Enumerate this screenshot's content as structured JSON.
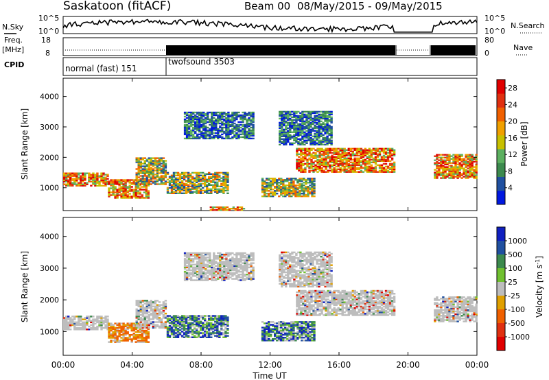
{
  "header": {
    "station": "Saskatoon (fitACF)",
    "beam": "Beam 00",
    "date_range": "08/May/2015 - 09/May/2015"
  },
  "top_panels": {
    "nsky_label": "N.Sky",
    "nsky_ticks": [
      "10^5",
      "10^0"
    ],
    "nsearch_label": "N.Search",
    "nsearch_ticks": [
      "10^5",
      "10^0"
    ],
    "freq_label_1": "Freq.",
    "freq_label_2": "[MHz]",
    "freq_ticks": [
      "18",
      "8"
    ],
    "nave_label": "Nave",
    "nave_ticks": [
      "80",
      "0"
    ],
    "cpid_label": "CPID",
    "cpid_modes": [
      {
        "label": "normal (fast) 151"
      },
      {
        "label": "twofsound 3503"
      }
    ]
  },
  "colors": {
    "power": [
      "#0018e0",
      "#2050a0",
      "#3c8a4e",
      "#5cb060",
      "#c8c000",
      "#f0a000",
      "#f06000",
      "#e03010",
      "#e00000"
    ],
    "velocity_pos": [
      "#1020c0",
      "#2050a0",
      "#3c8a4e",
      "#70c030"
    ],
    "velocity_mid": "#bdbdbd",
    "velocity_neg": [
      "#e0a000",
      "#f06000",
      "#e03010",
      "#e00000"
    ]
  },
  "chart_data": [
    {
      "type": "heatmap",
      "name": "power",
      "ylabel": "Slant Range [km]",
      "yticks": [
        "1000",
        "2000",
        "3000",
        "4000"
      ],
      "ylim": [
        250,
        4600
      ],
      "colorbar_label": "Power [dB]",
      "colorbar_ticks": [
        "4",
        "8",
        "12",
        "16",
        "20",
        "24",
        "28"
      ],
      "colorbar_range": [
        0,
        30
      ],
      "bands": [
        {
          "t0": 0.0,
          "t1": 2.6,
          "r0": 1050,
          "r1": 1500,
          "level": "high"
        },
        {
          "t0": 2.6,
          "t1": 5.0,
          "r0": 650,
          "r1": 1250,
          "level": "high"
        },
        {
          "t0": 4.2,
          "t1": 6.0,
          "r0": 1100,
          "r1": 2000,
          "level": "mid"
        },
        {
          "t0": 6.0,
          "t1": 9.5,
          "r0": 800,
          "r1": 1500,
          "level": "mid"
        },
        {
          "t0": 7.0,
          "t1": 11.0,
          "r0": 2600,
          "r1": 3500,
          "level": "low"
        },
        {
          "t0": 8.5,
          "t1": 10.5,
          "r0": 250,
          "r1": 350,
          "level": "high"
        },
        {
          "t0": 11.5,
          "t1": 14.5,
          "r0": 700,
          "r1": 1300,
          "level": "mid"
        },
        {
          "t0": 12.5,
          "t1": 15.5,
          "r0": 2400,
          "r1": 3500,
          "level": "low"
        },
        {
          "t0": 13.5,
          "t1": 19.2,
          "r0": 1500,
          "r1": 2300,
          "level": "high"
        },
        {
          "t0": 21.5,
          "t1": 24.0,
          "r0": 1300,
          "r1": 2100,
          "level": "high"
        }
      ]
    },
    {
      "type": "heatmap",
      "name": "velocity",
      "ylabel": "Slant Range [km]",
      "yticks": [
        "1000",
        "2000",
        "3000",
        "4000"
      ],
      "ylim": [
        250,
        4600
      ],
      "colorbar_label": "Velocity [m s^-1]",
      "colorbar_ticks": [
        "1000",
        "500",
        "100",
        "25",
        "-25",
        "-100",
        "-500",
        "-1000"
      ],
      "xlabel": "Time UT",
      "xticks": [
        "00:00",
        "04:00",
        "08:00",
        "12:00",
        "16:00",
        "20:00",
        "00:00"
      ],
      "xlim": [
        0,
        24
      ],
      "bands": [
        {
          "t0": 0.0,
          "t1": 2.6,
          "r0": 1050,
          "r1": 1500,
          "level": "mid"
        },
        {
          "t0": 2.6,
          "t1": 5.0,
          "r0": 650,
          "r1": 1250,
          "level": "neg"
        },
        {
          "t0": 4.2,
          "t1": 6.0,
          "r0": 1100,
          "r1": 2000,
          "level": "mid"
        },
        {
          "t0": 6.0,
          "t1": 9.5,
          "r0": 800,
          "r1": 1500,
          "level": "pos"
        },
        {
          "t0": 7.0,
          "t1": 11.0,
          "r0": 2600,
          "r1": 3500,
          "level": "mid"
        },
        {
          "t0": 11.5,
          "t1": 14.5,
          "r0": 700,
          "r1": 1300,
          "level": "pos"
        },
        {
          "t0": 12.5,
          "t1": 15.5,
          "r0": 2400,
          "r1": 3500,
          "level": "mid"
        },
        {
          "t0": 13.5,
          "t1": 19.2,
          "r0": 1500,
          "r1": 2300,
          "level": "mid"
        },
        {
          "t0": 21.5,
          "t1": 24.0,
          "r0": 1300,
          "r1": 2100,
          "level": "mid"
        }
      ]
    }
  ]
}
